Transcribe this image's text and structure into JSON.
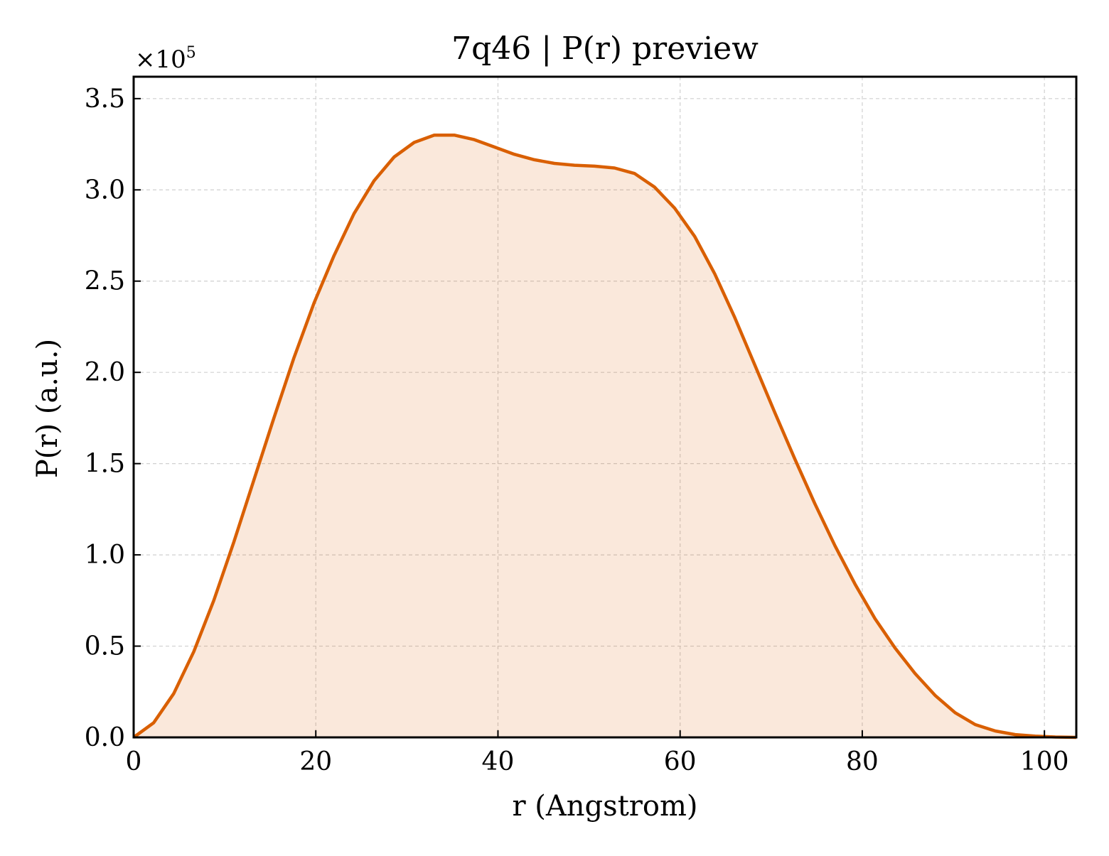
{
  "chart_data": {
    "type": "area",
    "title": "7q46 | P(r) preview",
    "xlabel": "r (Angstrom)",
    "ylabel": "P(r) (a.u.)",
    "y_offset_label": "×10",
    "y_offset_exponent": "5",
    "y_scale": 100000,
    "xlim": [
      0,
      103.5
    ],
    "ylim": [
      0,
      362000
    ],
    "xticks": [
      0,
      20,
      40,
      60,
      80,
      100
    ],
    "xtick_labels": [
      "0",
      "20",
      "40",
      "60",
      "80",
      "100"
    ],
    "yticks": [
      0,
      50000,
      100000,
      150000,
      200000,
      250000,
      300000,
      350000
    ],
    "ytick_labels": [
      "0.0",
      "0.5",
      "1.0",
      "1.5",
      "2.0",
      "2.5",
      "3.0",
      "3.5"
    ],
    "grid": true,
    "legend": "none",
    "line_color": "#d95f02",
    "fill_color": "#d95f02",
    "fill_opacity": 0.14,
    "series": [
      {
        "x": [
          0,
          2.2,
          4.4,
          6.6,
          8.8,
          11.0,
          13.2,
          15.4,
          17.6,
          19.8,
          22.0,
          24.2,
          26.4,
          28.6,
          30.8,
          33.0,
          35.2,
          37.4,
          39.6,
          41.8,
          44.0,
          46.2,
          48.4,
          50.6,
          52.8,
          55.0,
          57.2,
          59.4,
          61.6,
          63.8,
          66.0,
          68.2,
          70.4,
          72.6,
          74.8,
          77.0,
          79.2,
          81.4,
          83.6,
          85.8,
          88.0,
          90.2,
          92.4,
          94.6,
          96.8,
          99.0,
          101.2,
          103.5
        ],
        "y": [
          0,
          8000,
          24000,
          47000,
          75000,
          107000,
          141000,
          175000,
          208000,
          238000,
          264000,
          287000,
          305000,
          318000,
          326000,
          330000,
          330000,
          327500,
          323500,
          319500,
          316500,
          314500,
          313500,
          313000,
          312000,
          309000,
          301500,
          290000,
          274500,
          254000,
          230000,
          204000,
          178000,
          152500,
          128000,
          105000,
          84000,
          65000,
          49000,
          35000,
          23000,
          13500,
          7000,
          3500,
          1500,
          700,
          200,
          0
        ]
      }
    ]
  }
}
